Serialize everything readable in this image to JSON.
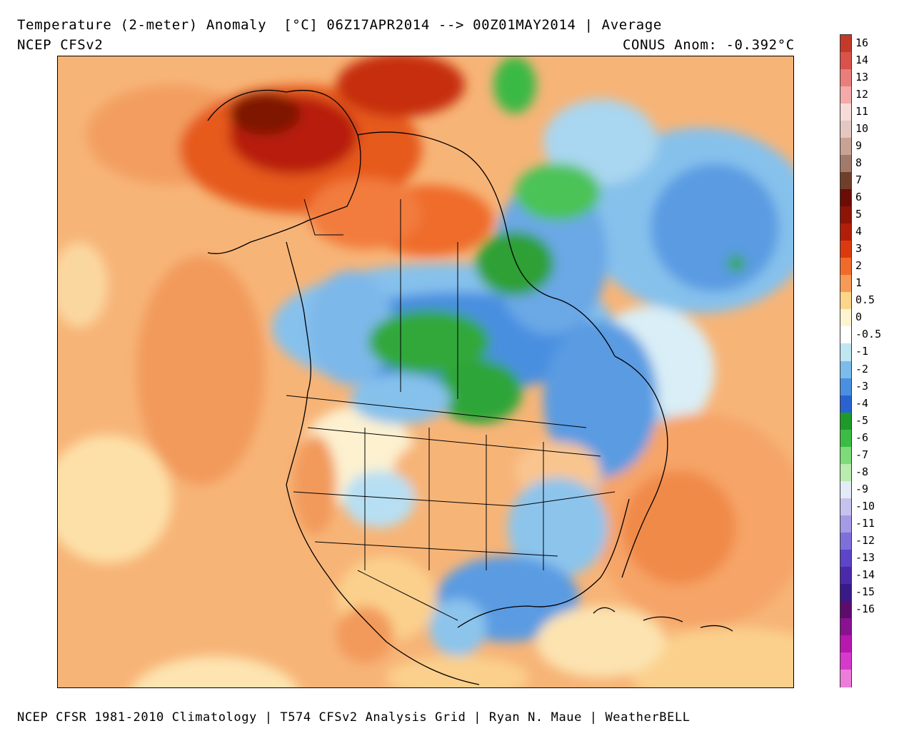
{
  "header": {
    "title": "Temperature (2-meter) Anomaly  [°C] 06Z17APR2014 --> 00Z01MAY2014 | Average",
    "model": "NCEP CFSv2",
    "conus_anomaly": "CONUS Anom: -0.392°C"
  },
  "footer": "NCEP CFSR 1981-2010 Climatology | T574 CFSv2 Analysis Grid | Ryan N. Maue | WeatherBELL",
  "legend": {
    "unit": "°C",
    "levels": [
      {
        "label": "16",
        "color": "#c43a2a"
      },
      {
        "label": "14",
        "color": "#d9534a"
      },
      {
        "label": "13",
        "color": "#e97e7b"
      },
      {
        "label": "12",
        "color": "#f3aaa8"
      },
      {
        "label": "11",
        "color": "#f6dcd8"
      },
      {
        "label": "10",
        "color": "#e3c7c0"
      },
      {
        "label": "9",
        "color": "#c9a295"
      },
      {
        "label": "8",
        "color": "#a27a6a"
      },
      {
        "label": "7",
        "color": "#6f3f2a"
      },
      {
        "label": "6",
        "color": "#6b0c06"
      },
      {
        "label": "5",
        "color": "#8d1506"
      },
      {
        "label": "4",
        "color": "#b11f08"
      },
      {
        "label": "3",
        "color": "#dc3a0e"
      },
      {
        "label": "2",
        "color": "#f06b2a"
      },
      {
        "label": "1",
        "color": "#f59a57"
      },
      {
        "label": "0.5",
        "color": "#fbd58a"
      },
      {
        "label": "0",
        "color": "#fdf5d2"
      },
      {
        "label": "-0.5",
        "color": "#ffffff"
      },
      {
        "label": "-1",
        "color": "#bfe6f2"
      },
      {
        "label": "-2",
        "color": "#7dbbeb"
      },
      {
        "label": "-3",
        "color": "#4a8fe0"
      },
      {
        "label": "-4",
        "color": "#2a62cf"
      },
      {
        "label": "-5",
        "color": "#1f9a2a"
      },
      {
        "label": "-6",
        "color": "#3bbd45"
      },
      {
        "label": "-7",
        "color": "#7ddb78"
      },
      {
        "label": "-8",
        "color": "#b9ecae"
      },
      {
        "label": "-9",
        "color": "#e3ecf6"
      },
      {
        "label": "-10",
        "color": "#c6c2ee"
      },
      {
        "label": "-11",
        "color": "#a49ae6"
      },
      {
        "label": "-12",
        "color": "#7f6fdb"
      },
      {
        "label": "-13",
        "color": "#5e44c6"
      },
      {
        "label": "-14",
        "color": "#4a2aa8"
      },
      {
        "label": "-15",
        "color": "#3a1a86"
      },
      {
        "label": "-16",
        "color": "#5c0d6c"
      },
      {
        "label": "",
        "color": "#8a1190"
      },
      {
        "label": "",
        "color": "#b818b0"
      },
      {
        "label": "",
        "color": "#d63acb"
      },
      {
        "label": "",
        "color": "#ea7ed9"
      }
    ]
  }
}
